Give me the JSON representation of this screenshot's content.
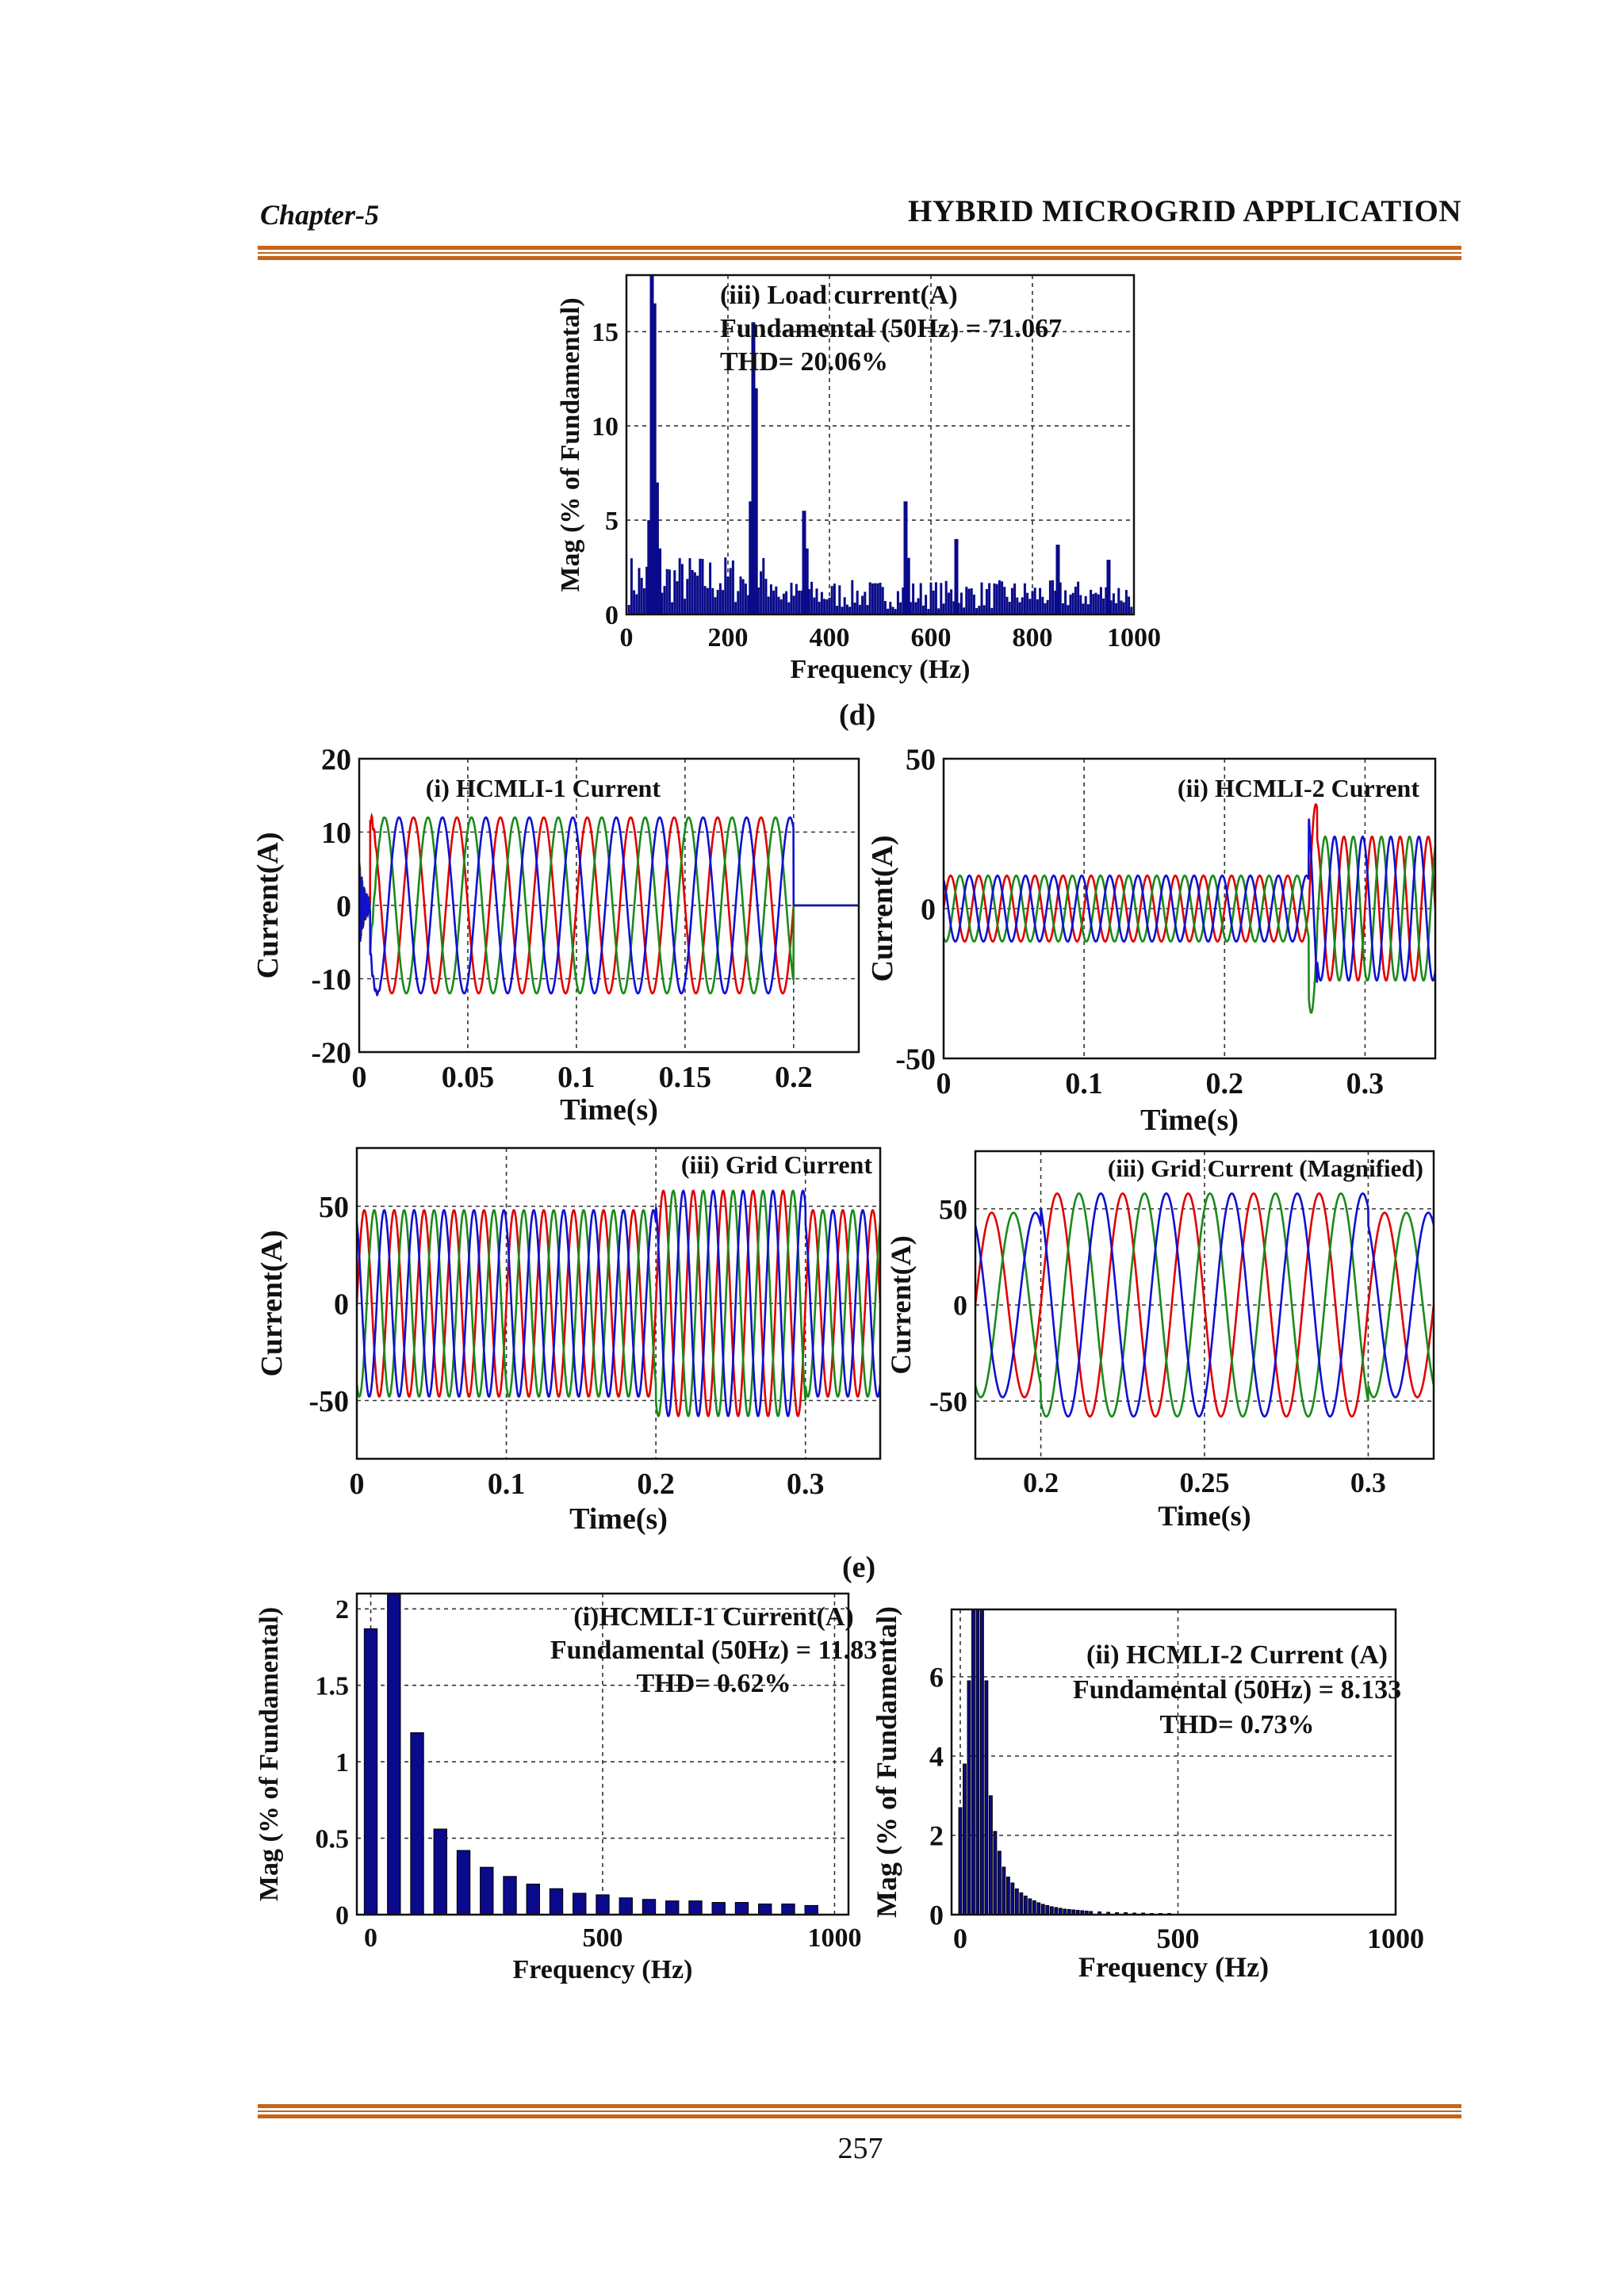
{
  "header": {
    "chapter": "Chapter-5",
    "title": "HYBRID MICROGRID APPLICATION"
  },
  "captions": {
    "d": "(d)",
    "e": "(e)"
  },
  "page_number": "257",
  "colors": {
    "phase_a": "#e00000",
    "phase_b": "#1a8a1a",
    "phase_c": "#1010d0",
    "bar": "#0a0a8a",
    "annotation_red": "#e00000",
    "rule": "#c4651c"
  },
  "chart_data": [
    {
      "id": "load-spectrum",
      "type": "bar",
      "annotation": [
        "(iii) Load current(A)",
        "Fundamental (50Hz) = 71.067",
        "THD= 20.06%"
      ],
      "annotation_color": "black",
      "ylabel": "Mag (% of Fundamental)",
      "xlabel": "Frequency (Hz)",
      "xlim": [
        0,
        1000
      ],
      "ylim": [
        0,
        18
      ],
      "xticks": [
        0,
        200,
        400,
        600,
        800,
        1000
      ],
      "yticks": [
        0,
        5,
        10,
        15
      ],
      "grid": true,
      "peaks": [
        {
          "f": 50,
          "v": 18.3
        },
        {
          "f": 55,
          "v": 16.5
        },
        {
          "f": 60,
          "v": 7.0
        },
        {
          "f": 45,
          "v": 5.0
        },
        {
          "f": 65,
          "v": 3.5
        },
        {
          "f": 250,
          "v": 15.5
        },
        {
          "f": 255,
          "v": 12.0
        },
        {
          "f": 245,
          "v": 6.0
        },
        {
          "f": 350,
          "v": 5.5
        },
        {
          "f": 355,
          "v": 3.5
        },
        {
          "f": 550,
          "v": 6.0
        },
        {
          "f": 555,
          "v": 3.0
        },
        {
          "f": 650,
          "v": 4.0
        },
        {
          "f": 850,
          "v": 3.7
        },
        {
          "f": 950,
          "v": 2.9
        }
      ],
      "baseline": 1.2
    },
    {
      "id": "hcmli1-current",
      "type": "line",
      "annotation": [
        "(i) HCMLI-1 Current"
      ],
      "ylabel": "Current(A)",
      "xlabel": "Time(s)",
      "xlim": [
        0,
        0.23
      ],
      "ylim": [
        -20,
        20
      ],
      "xticks": [
        0,
        0.05,
        0.1,
        0.15,
        0.2
      ],
      "xticklabels": [
        "0",
        "0.05",
        "0.1",
        "0.15",
        "0.2"
      ],
      "yticks": [
        -20,
        -10,
        0,
        10,
        20
      ],
      "grid": true,
      "frequency_hz": 50,
      "amplitude": 12,
      "active_interval": [
        0.005,
        0.2
      ],
      "series": [
        {
          "color": "#e00000",
          "phase_deg": 0
        },
        {
          "color": "#1a8a1a",
          "phase_deg": -120
        },
        {
          "color": "#1010d0",
          "phase_deg": 120
        }
      ]
    },
    {
      "id": "hcmli2-current",
      "type": "line",
      "annotation": [
        "(ii) HCMLI-2 Current"
      ],
      "ylabel": "Current(A)",
      "xlabel": "Time(s)",
      "xlim": [
        0,
        0.35
      ],
      "ylim": [
        -50,
        50
      ],
      "xticks": [
        0,
        0.1,
        0.2,
        0.3
      ],
      "xticklabels": [
        "0",
        "0.1",
        "0.2",
        "0.3"
      ],
      "yticks": [
        -50,
        0,
        50
      ],
      "grid": true,
      "frequency_hz": 50,
      "amplitude_before": 11,
      "amplitude_after": 24,
      "step_time": 0.26,
      "series": [
        {
          "color": "#e00000",
          "phase_deg": 0
        },
        {
          "color": "#1a8a1a",
          "phase_deg": -120
        },
        {
          "color": "#1010d0",
          "phase_deg": 120
        }
      ]
    },
    {
      "id": "grid-current",
      "type": "line",
      "annotation": [
        "(iii) Grid Current"
      ],
      "ylabel": "Current(A)",
      "xlabel": "Time(s)",
      "xlim": [
        0,
        0.35
      ],
      "ylim": [
        -80,
        80
      ],
      "xticks": [
        0,
        0.1,
        0.2,
        0.3
      ],
      "xticklabels": [
        "0",
        "0.1",
        "0.2",
        "0.3"
      ],
      "yticks": [
        -50,
        0,
        50
      ],
      "grid": true,
      "frequency_hz": 50,
      "amplitude_before": 48,
      "amplitude_after": 58,
      "step_interval": [
        0.2,
        0.3
      ],
      "series": [
        {
          "color": "#e00000",
          "phase_deg": 0
        },
        {
          "color": "#1a8a1a",
          "phase_deg": -120
        },
        {
          "color": "#1010d0",
          "phase_deg": 120
        }
      ]
    },
    {
      "id": "grid-current-magnified",
      "type": "line",
      "annotation": [
        "(iii) Grid Current (Magnified)"
      ],
      "ylabel": "Current(A)",
      "xlabel": "Time(s)",
      "xlim": [
        0.18,
        0.32
      ],
      "ylim": [
        -80,
        80
      ],
      "xticks": [
        0.2,
        0.25,
        0.3
      ],
      "xticklabels": [
        "0.2",
        "0.25",
        "0.3"
      ],
      "yticks": [
        -50,
        0,
        50
      ],
      "grid": true,
      "frequency_hz": 50,
      "amplitude_before": 48,
      "amplitude_after": 58,
      "step_interval": [
        0.2,
        0.3
      ],
      "series": [
        {
          "color": "#e00000",
          "phase_deg": 0
        },
        {
          "color": "#1a8a1a",
          "phase_deg": -120
        },
        {
          "color": "#1010d0",
          "phase_deg": 120
        }
      ]
    },
    {
      "id": "hcmli1-spectrum",
      "type": "bar",
      "annotation": [
        "(i)HCMLI-1 Current(A)",
        "Fundamental (50Hz) = 11.83",
        "THD= 0.62%"
      ],
      "annotation_color": "red",
      "ylabel": "Mag (% of Fundamental)",
      "xlabel": "Frequency (Hz)",
      "xlim": [
        -30,
        1030
      ],
      "ylim": [
        0,
        2.1
      ],
      "xticks": [
        0,
        500,
        1000
      ],
      "yticks": [
        0,
        0.5,
        1,
        1.5,
        2
      ],
      "yticklabels": [
        "0",
        "0.5",
        "1",
        "1.5",
        "2"
      ],
      "grid": true,
      "bar_width_hz": 28,
      "bars": [
        {
          "f": 0,
          "v": 1.87
        },
        {
          "f": 50,
          "v": 2.1
        },
        {
          "f": 100,
          "v": 1.19
        },
        {
          "f": 150,
          "v": 0.56
        },
        {
          "f": 200,
          "v": 0.42
        },
        {
          "f": 250,
          "v": 0.31
        },
        {
          "f": 300,
          "v": 0.25
        },
        {
          "f": 350,
          "v": 0.2
        },
        {
          "f": 400,
          "v": 0.17
        },
        {
          "f": 450,
          "v": 0.14
        },
        {
          "f": 500,
          "v": 0.13
        },
        {
          "f": 550,
          "v": 0.11
        },
        {
          "f": 600,
          "v": 0.1
        },
        {
          "f": 650,
          "v": 0.09
        },
        {
          "f": 700,
          "v": 0.09
        },
        {
          "f": 750,
          "v": 0.08
        },
        {
          "f": 800,
          "v": 0.08
        },
        {
          "f": 850,
          "v": 0.07
        },
        {
          "f": 900,
          "v": 0.07
        },
        {
          "f": 950,
          "v": 0.06
        }
      ]
    },
    {
      "id": "hcmli2-spectrum",
      "type": "bar",
      "annotation": [
        "(ii) HCMLI-2 Current (A)",
        "Fundamental (50Hz) = 8.133",
        "THD= 0.73%"
      ],
      "annotation_color": "red",
      "ylabel": "Mag (% of Fundamental)",
      "xlabel": "Frequency (Hz)",
      "xlim": [
        -20,
        1000
      ],
      "ylim": [
        0,
        7.7
      ],
      "xticks": [
        0,
        500,
        1000
      ],
      "yticks": [
        0,
        2,
        4,
        6
      ],
      "grid": true,
      "bar_width_hz": 7,
      "bars": [
        {
          "f": 0,
          "v": 2.7
        },
        {
          "f": 10,
          "v": 3.8
        },
        {
          "f": 20,
          "v": 5.9
        },
        {
          "f": 30,
          "v": 7.7
        },
        {
          "f": 40,
          "v": 7.7
        },
        {
          "f": 50,
          "v": 7.7
        },
        {
          "f": 60,
          "v": 5.9
        },
        {
          "f": 70,
          "v": 3.0
        },
        {
          "f": 80,
          "v": 2.1
        },
        {
          "f": 90,
          "v": 1.6
        },
        {
          "f": 100,
          "v": 1.2
        },
        {
          "f": 110,
          "v": 0.95
        },
        {
          "f": 120,
          "v": 0.8
        },
        {
          "f": 130,
          "v": 0.65
        },
        {
          "f": 140,
          "v": 0.55
        },
        {
          "f": 150,
          "v": 0.47
        },
        {
          "f": 160,
          "v": 0.4
        },
        {
          "f": 170,
          "v": 0.35
        },
        {
          "f": 180,
          "v": 0.3
        },
        {
          "f": 190,
          "v": 0.26
        },
        {
          "f": 200,
          "v": 0.23
        },
        {
          "f": 210,
          "v": 0.2
        },
        {
          "f": 220,
          "v": 0.18
        },
        {
          "f": 230,
          "v": 0.16
        },
        {
          "f": 240,
          "v": 0.14
        },
        {
          "f": 250,
          "v": 0.13
        },
        {
          "f": 260,
          "v": 0.12
        },
        {
          "f": 270,
          "v": 0.11
        },
        {
          "f": 280,
          "v": 0.1
        },
        {
          "f": 290,
          "v": 0.09
        },
        {
          "f": 300,
          "v": 0.08
        },
        {
          "f": 320,
          "v": 0.07
        },
        {
          "f": 340,
          "v": 0.06
        },
        {
          "f": 360,
          "v": 0.05
        },
        {
          "f": 380,
          "v": 0.05
        },
        {
          "f": 400,
          "v": 0.04
        },
        {
          "f": 420,
          "v": 0.04
        },
        {
          "f": 440,
          "v": 0.03
        },
        {
          "f": 460,
          "v": 0.03
        },
        {
          "f": 480,
          "v": 0.03
        }
      ]
    }
  ]
}
